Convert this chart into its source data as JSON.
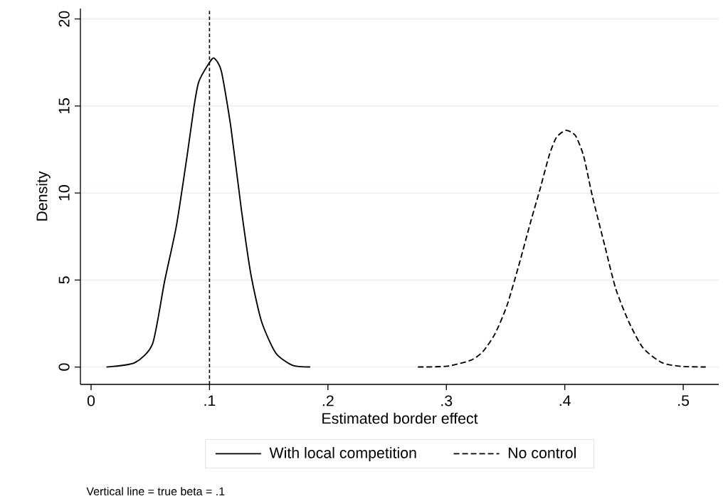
{
  "chart_data": {
    "type": "line",
    "xlabel": "Estimated border effect",
    "ylabel": "Density",
    "xlim": [
      -0.009,
      0.53
    ],
    "ylim": [
      -1,
      20.6
    ],
    "xticks": [
      {
        "value": 0,
        "label": "0"
      },
      {
        "value": 0.1,
        "label": ".1"
      },
      {
        "value": 0.2,
        "label": ".2"
      },
      {
        "value": 0.3,
        "label": ".3"
      },
      {
        "value": 0.4,
        "label": ".4"
      },
      {
        "value": 0.5,
        "label": ".5"
      }
    ],
    "yticks": [
      0,
      5,
      10,
      15,
      20
    ],
    "grid": "y",
    "legend": "bottom",
    "series": [
      {
        "name": "With local competition",
        "color": "#000000",
        "line_style": "solid",
        "x": [
          0.013,
          0.037,
          0.052,
          0.062,
          0.072,
          0.081,
          0.087,
          0.091,
          0.1,
          0.104,
          0.11,
          0.118,
          0.127,
          0.135,
          0.144,
          0.156,
          0.17,
          0.185
        ],
        "values": [
          0,
          0.25,
          1.35,
          4.9,
          8.1,
          12.1,
          15,
          16.4,
          17.5,
          17.75,
          17,
          13.8,
          9,
          5.3,
          2.6,
          0.8,
          0.1,
          0
        ]
      },
      {
        "name": "No control",
        "color": "#000000",
        "line_style": "dashed",
        "x": [
          0.276,
          0.301,
          0.321,
          0.331,
          0.341,
          0.351,
          0.361,
          0.371,
          0.379,
          0.387,
          0.393,
          0.401,
          0.409,
          0.416,
          0.423,
          0.434,
          0.443,
          0.454,
          0.466,
          0.482,
          0.498,
          0.519
        ],
        "values": [
          0,
          0.05,
          0.4,
          0.9,
          1.9,
          3.5,
          5.8,
          8.3,
          10.2,
          12.2,
          13.2,
          13.6,
          13.3,
          12.1,
          9.9,
          6.9,
          4.5,
          2.6,
          1.1,
          0.25,
          0.04,
          0
        ]
      }
    ],
    "ref_lines": [
      {
        "axis": "x",
        "value": 0.1,
        "color": "#000000",
        "line_style": "dashed"
      }
    ],
    "annotations": [
      "Vertical line = true beta = .1"
    ]
  }
}
